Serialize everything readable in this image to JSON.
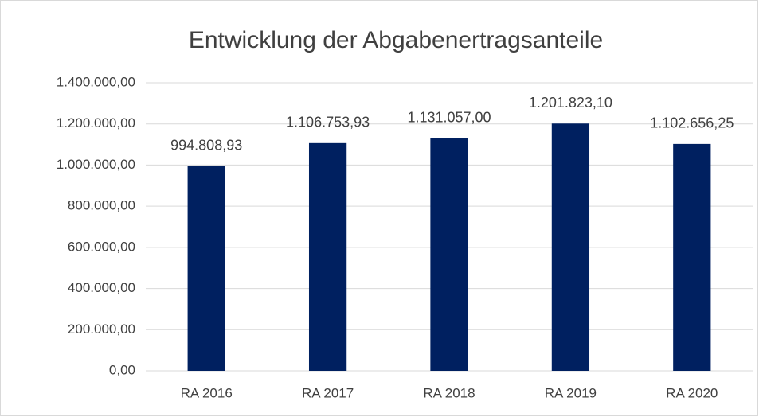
{
  "chart_data": {
    "type": "bar",
    "title": "Entwicklung der Abgabenertragsanteile",
    "categories": [
      "RA 2016",
      "RA 2017",
      "RA 2018",
      "RA 2019",
      "RA 2020"
    ],
    "values": [
      994808.93,
      1106753.93,
      1131057.0,
      1201823.1,
      1102656.25
    ],
    "value_labels": [
      "994.808,93",
      "1.106.753,93",
      "1.131.057,00",
      "1.201.823,10",
      "1.102.656,25"
    ],
    "color": "#002060",
    "ylim": [
      0,
      1400000
    ],
    "yticks": [
      {
        "value": 0,
        "label": "0,00"
      },
      {
        "value": 200000,
        "label": "200.000,00"
      },
      {
        "value": 400000,
        "label": "400.000,00"
      },
      {
        "value": 600000,
        "label": "600.000,00"
      },
      {
        "value": 800000,
        "label": "800.000,00"
      },
      {
        "value": 1000000,
        "label": "1.000.000,00"
      },
      {
        "value": 1200000,
        "label": "1.200.000,00"
      },
      {
        "value": 1400000,
        "label": "1.400.000,00"
      }
    ],
    "grid": true
  }
}
